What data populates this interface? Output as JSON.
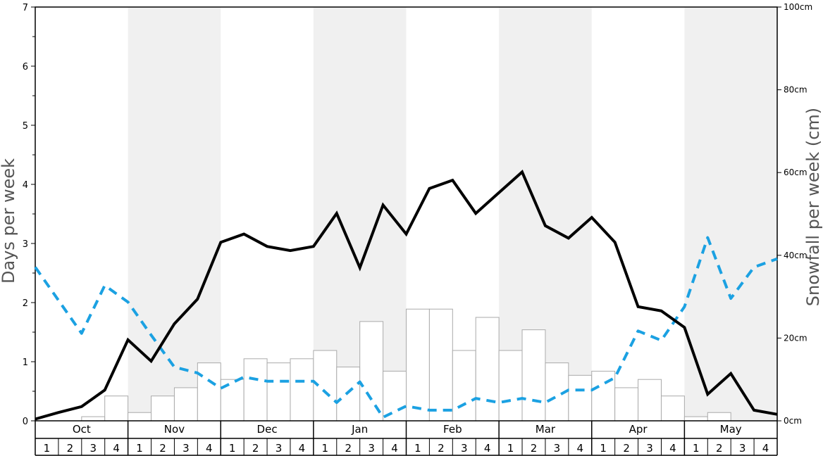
{
  "chart_data": {
    "type": "bar+line",
    "months": [
      "Oct",
      "Nov",
      "Dec",
      "Jan",
      "Feb",
      "Mar",
      "Apr",
      "May"
    ],
    "weeks": [
      "1",
      "2",
      "3",
      "4"
    ],
    "left_axis": {
      "label": "Days per week",
      "ylim": [
        0,
        7
      ],
      "ticks": [
        "0",
        "1",
        "2",
        "3",
        "4",
        "5",
        "6",
        "7"
      ]
    },
    "right_axis": {
      "label": "Snowfall per week (cm)",
      "ylim": [
        0,
        100
      ],
      "ticks": [
        "0cm",
        "20cm",
        "40cm",
        "60cm",
        "80cm",
        "100cm"
      ],
      "tick_values": [
        0,
        20,
        40,
        60,
        80,
        100
      ]
    },
    "snowfall_cm": [
      0,
      0,
      1,
      6,
      2,
      6,
      8,
      14,
      10,
      15,
      14,
      15,
      17,
      13,
      24,
      12,
      27,
      27,
      17,
      25,
      17,
      22,
      14,
      11,
      12,
      8,
      10,
      6,
      1,
      2,
      0,
      0
    ],
    "series_solid_black": [
      0.03,
      0.14,
      0.24,
      0.52,
      1.37,
      1.01,
      1.64,
      2.06,
      3.02,
      3.16,
      2.95,
      2.88,
      2.95,
      3.51,
      2.59,
      3.65,
      3.16,
      3.93,
      4.07,
      3.51,
      3.86,
      4.21,
      3.3,
      3.09,
      3.44,
      3.02,
      1.93,
      1.86,
      1.58,
      0.45,
      0.8,
      0.18,
      0.11
    ],
    "series_dashed_blue": [
      2.6,
      2.04,
      1.48,
      2.29,
      2.01,
      1.45,
      0.91,
      0.81,
      0.55,
      0.74,
      0.67,
      0.67,
      0.67,
      0.31,
      0.66,
      0.06,
      0.25,
      0.18,
      0.18,
      0.38,
      0.31,
      0.38,
      0.31,
      0.52,
      0.52,
      0.73,
      1.52,
      1.36,
      1.93,
      3.1,
      2.07,
      2.6,
      2.74
    ],
    "colors": {
      "line_solid": "#000000",
      "line_dashed": "#1ba1e2",
      "bar_fill": "#ffffff",
      "bar_stroke": "#aaaaaa",
      "band_shade": "#f0f0f0"
    }
  }
}
